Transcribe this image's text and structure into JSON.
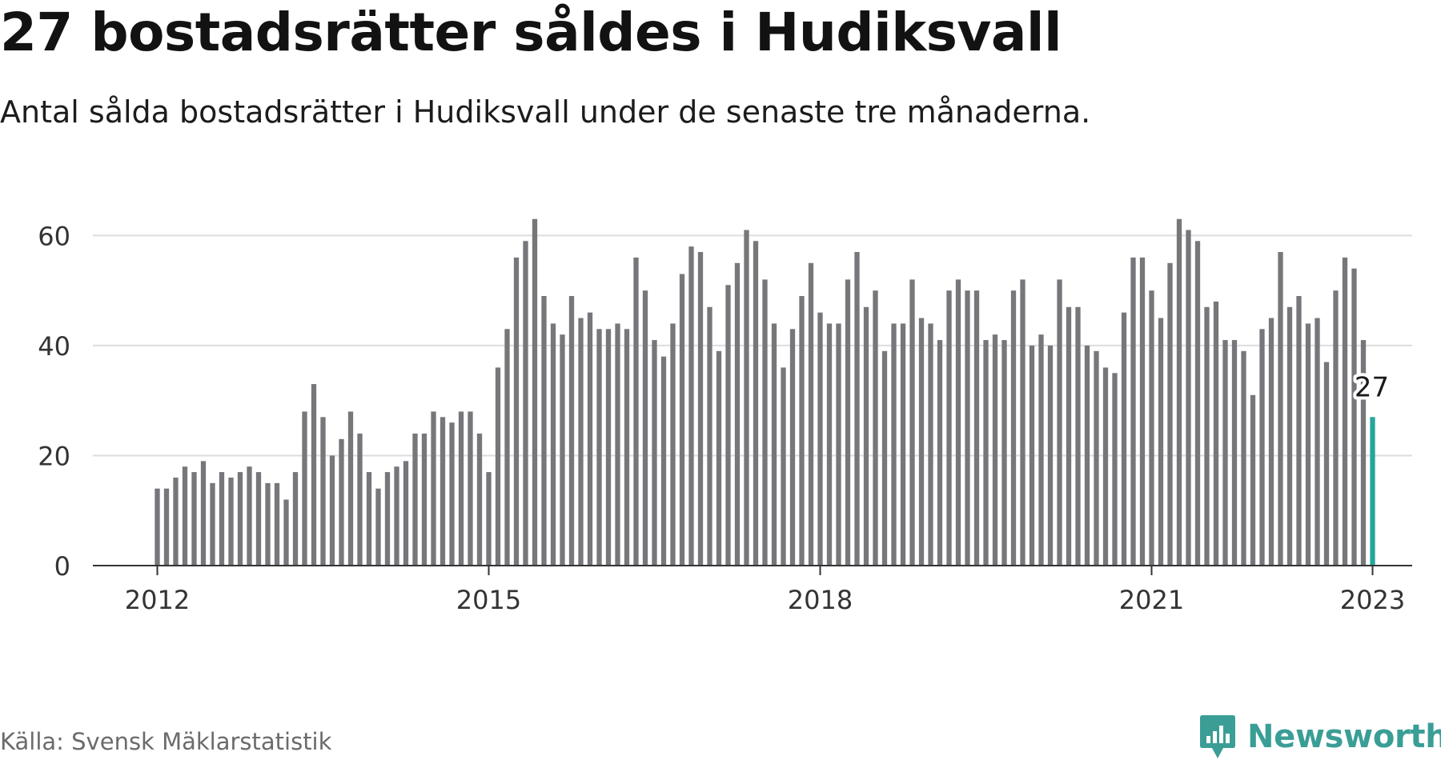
{
  "header": {
    "title": "27 bostadsrätter såldes i Hudiksvall",
    "subtitle": "Antal sålda bostadsrätter i Hudiksvall under de senaste tre månaderna."
  },
  "footer": {
    "source": "Källa: Svensk Mäklarstatistik",
    "logo_text": "Newsworthy"
  },
  "colors": {
    "bar": "#77777b",
    "highlight": "#26a69a",
    "grid": "#dddddd",
    "axis": "#333333",
    "brand": "#3a9e96"
  },
  "chart_data": {
    "type": "bar",
    "x_start": "2012-01",
    "x_ticks": [
      "2012",
      "2015",
      "2018",
      "2021",
      "2023"
    ],
    "y_ticks": [
      0,
      20,
      40,
      60
    ],
    "ylim": [
      0,
      65
    ],
    "grid": true,
    "highlight_label": "27",
    "values": [
      14,
      14,
      16,
      18,
      17,
      19,
      15,
      17,
      16,
      17,
      18,
      17,
      15,
      15,
      12,
      17,
      28,
      33,
      27,
      20,
      23,
      28,
      24,
      17,
      14,
      17,
      18,
      19,
      24,
      24,
      28,
      27,
      26,
      28,
      28,
      24,
      17,
      36,
      43,
      56,
      59,
      63,
      49,
      44,
      42,
      49,
      45,
      46,
      43,
      43,
      44,
      43,
      56,
      50,
      41,
      38,
      44,
      53,
      58,
      57,
      47,
      39,
      51,
      55,
      61,
      59,
      52,
      44,
      36,
      43,
      49,
      55,
      46,
      44,
      44,
      52,
      57,
      47,
      50,
      39,
      44,
      44,
      52,
      45,
      44,
      41,
      50,
      52,
      50,
      50,
      41,
      42,
      41,
      50,
      52,
      40,
      42,
      40,
      52,
      47,
      47,
      40,
      39,
      36,
      35,
      46,
      56,
      56,
      50,
      45,
      55,
      63,
      61,
      59,
      47,
      48,
      41,
      41,
      39,
      31,
      43,
      45,
      57,
      47,
      49,
      44,
      45,
      37,
      50,
      56,
      54,
      41,
      27
    ]
  }
}
